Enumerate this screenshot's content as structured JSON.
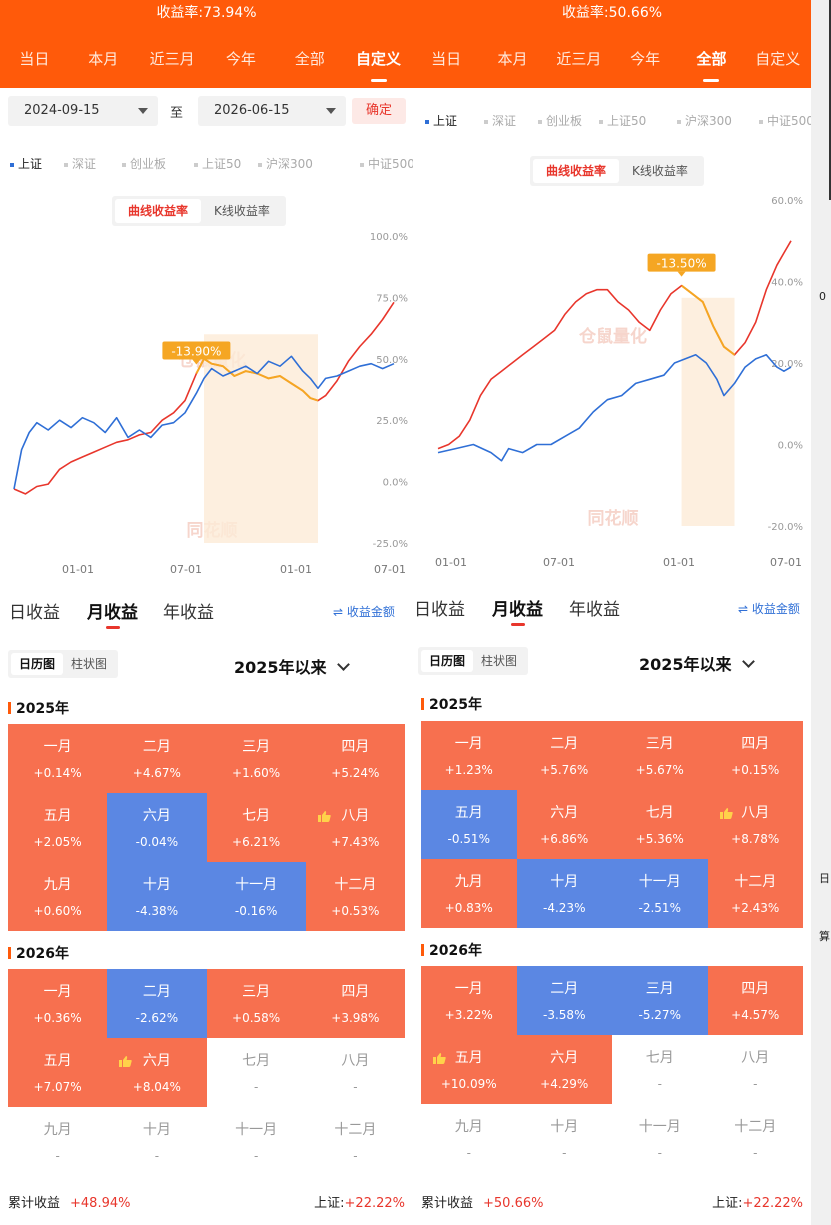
{
  "left": {
    "header": {
      "yield": "收益率:73.94%"
    },
    "tabs": [
      {
        "label": "当日",
        "active": false
      },
      {
        "label": "本月",
        "active": false
      },
      {
        "label": "近三月",
        "active": false
      },
      {
        "label": "今年",
        "active": false
      },
      {
        "label": "全部",
        "active": false
      },
      {
        "label": "自定义",
        "active": true
      }
    ],
    "date_range": {
      "start": "2024-09-15",
      "separator": "至",
      "end": "2026-06-15",
      "confirm": "确定"
    },
    "legend": [
      "上证",
      "深证",
      "创业板",
      "上证50",
      "沪深300",
      "中证500"
    ],
    "chart_toggle": [
      "曲线收益率",
      "K线收益率"
    ],
    "chart_data": {
      "type": "line",
      "y_ticks": [
        "100.0%",
        "75.0%",
        "50.0%",
        "25.0%",
        "0.0%",
        "-25.0%"
      ],
      "x_ticks": [
        "01-01",
        "07-01",
        "01-01",
        "07-01"
      ],
      "ylim": [
        -25,
        100
      ],
      "drawdown_label": "-13.90%",
      "watermarks": [
        "仓鼠量化",
        "同花顺"
      ],
      "series": [
        {
          "name": "",
          "color": "#e8362c",
          "points": [
            [
              0,
              -3
            ],
            [
              3,
              -5
            ],
            [
              6,
              -2
            ],
            [
              9,
              -1
            ],
            [
              12,
              5
            ],
            [
              15,
              8
            ],
            [
              18,
              10
            ],
            [
              21,
              12
            ],
            [
              24,
              14
            ],
            [
              27,
              16
            ],
            [
              30,
              17
            ],
            [
              33,
              19
            ],
            [
              36,
              20
            ],
            [
              39,
              25
            ],
            [
              42,
              28
            ],
            [
              45,
              33
            ],
            [
              48,
              44
            ],
            [
              50,
              50
            ],
            [
              52,
              48
            ],
            [
              55,
              47
            ],
            [
              58,
              43
            ],
            [
              61,
              45
            ],
            [
              64,
              44
            ],
            [
              67,
              42
            ],
            [
              70,
              43
            ],
            [
              73,
              40
            ],
            [
              76,
              37
            ],
            [
              78,
              34
            ],
            [
              80,
              33
            ],
            [
              82,
              35
            ],
            [
              85,
              41
            ],
            [
              88,
              49
            ],
            [
              91,
              55
            ],
            [
              94,
              60
            ],
            [
              97,
              66
            ],
            [
              100,
              73
            ]
          ]
        },
        {
          "name": "",
          "color": "#f5a623",
          "drawdown": true,
          "points": [
            [
              48,
              44
            ],
            [
              50,
              50
            ],
            [
              52,
              48
            ],
            [
              55,
              47
            ],
            [
              58,
              43
            ],
            [
              61,
              45
            ],
            [
              64,
              44
            ],
            [
              67,
              42
            ],
            [
              70,
              43
            ],
            [
              73,
              40
            ],
            [
              76,
              37
            ],
            [
              78,
              34
            ],
            [
              80,
              33
            ]
          ]
        },
        {
          "name": "上证",
          "color": "#2f6fd6",
          "points": [
            [
              0,
              -3
            ],
            [
              2,
              13
            ],
            [
              4,
              20
            ],
            [
              6,
              24
            ],
            [
              9,
              21
            ],
            [
              12,
              25
            ],
            [
              15,
              22
            ],
            [
              18,
              26
            ],
            [
              21,
              24
            ],
            [
              24,
              20
            ],
            [
              27,
              26
            ],
            [
              30,
              18
            ],
            [
              33,
              21
            ],
            [
              36,
              18
            ],
            [
              39,
              23
            ],
            [
              42,
              24
            ],
            [
              45,
              28
            ],
            [
              48,
              36
            ],
            [
              50,
              42
            ],
            [
              52,
              46
            ],
            [
              55,
              43
            ],
            [
              58,
              45
            ],
            [
              61,
              47
            ],
            [
              64,
              44
            ],
            [
              67,
              49
            ],
            [
              70,
              47
            ],
            [
              73,
              51
            ],
            [
              76,
              45
            ],
            [
              78,
              42
            ],
            [
              80,
              38
            ],
            [
              82,
              42
            ],
            [
              85,
              43
            ],
            [
              88,
              45
            ],
            [
              91,
              47
            ],
            [
              94,
              48
            ],
            [
              97,
              46
            ],
            [
              100,
              48
            ]
          ]
        }
      ],
      "shade_x": [
        50,
        80
      ]
    },
    "returns_tabs": [
      {
        "label": "日收益",
        "on": false
      },
      {
        "label": "月收益",
        "on": true
      },
      {
        "label": "年收益",
        "on": false
      }
    ],
    "amount_toggle": "⇌ 收益金额",
    "view_toggle": [
      "日历图",
      "柱状图"
    ],
    "since": "2025年以来",
    "years": [
      {
        "year": "2025年",
        "months": [
          {
            "m": "一月",
            "v": "+0.14%",
            "s": "pos"
          },
          {
            "m": "二月",
            "v": "+4.67%",
            "s": "pos"
          },
          {
            "m": "三月",
            "v": "+1.60%",
            "s": "pos"
          },
          {
            "m": "四月",
            "v": "+5.24%",
            "s": "pos"
          },
          {
            "m": "五月",
            "v": "+2.05%",
            "s": "pos"
          },
          {
            "m": "六月",
            "v": "-0.04%",
            "s": "neg"
          },
          {
            "m": "七月",
            "v": "+6.21%",
            "s": "pos"
          },
          {
            "m": "八月",
            "v": "+7.43%",
            "s": "pos",
            "best": true
          },
          {
            "m": "九月",
            "v": "+0.60%",
            "s": "pos"
          },
          {
            "m": "十月",
            "v": "-4.38%",
            "s": "neg"
          },
          {
            "m": "十一月",
            "v": "-0.16%",
            "s": "neg"
          },
          {
            "m": "十二月",
            "v": "+0.53%",
            "s": "pos"
          }
        ]
      },
      {
        "year": "2026年",
        "months": [
          {
            "m": "一月",
            "v": "+0.36%",
            "s": "pos"
          },
          {
            "m": "二月",
            "v": "-2.62%",
            "s": "neg"
          },
          {
            "m": "三月",
            "v": "+0.58%",
            "s": "pos"
          },
          {
            "m": "四月",
            "v": "+3.98%",
            "s": "pos"
          },
          {
            "m": "五月",
            "v": "+7.07%",
            "s": "pos"
          },
          {
            "m": "六月",
            "v": "+8.04%",
            "s": "pos",
            "best": true
          },
          {
            "m": "七月",
            "v": "-",
            "s": "none"
          },
          {
            "m": "八月",
            "v": "-",
            "s": "none"
          },
          {
            "m": "九月",
            "v": "-",
            "s": "none"
          },
          {
            "m": "十月",
            "v": "-",
            "s": "none"
          },
          {
            "m": "十一月",
            "v": "-",
            "s": "none"
          },
          {
            "m": "十二月",
            "v": "-",
            "s": "none"
          }
        ]
      }
    ],
    "footer": {
      "cum_label": "累计收益",
      "cum_value": "+48.94%",
      "idx_label": "上证:",
      "idx_value": "+22.22%"
    }
  },
  "right": {
    "header": {
      "yield": "收益率:50.66%"
    },
    "tabs": [
      {
        "label": "当日",
        "active": false
      },
      {
        "label": "本月",
        "active": false
      },
      {
        "label": "近三月",
        "active": false
      },
      {
        "label": "今年",
        "active": false
      },
      {
        "label": "全部",
        "active": true
      },
      {
        "label": "自定义",
        "active": false
      }
    ],
    "legend": [
      "上证",
      "深证",
      "创业板",
      "上证50",
      "沪深300",
      "中证500"
    ],
    "chart_toggle": [
      "曲线收益率",
      "K线收益率"
    ],
    "chart_data": {
      "type": "line",
      "y_ticks": [
        "60.0%",
        "40.0%",
        "20.0%",
        "0.0%",
        "-20.0%"
      ],
      "x_ticks": [
        "01-01",
        "07-01",
        "01-01",
        "07-01"
      ],
      "ylim": [
        -20,
        60
      ],
      "drawdown_label": "-13.50%",
      "watermarks": [
        "仓鼠量化",
        "同花顺"
      ],
      "series": [
        {
          "name": "",
          "color": "#e8362c",
          "points": [
            [
              0,
              -1
            ],
            [
              3,
              0
            ],
            [
              6,
              2
            ],
            [
              9,
              6
            ],
            [
              12,
              12
            ],
            [
              15,
              16
            ],
            [
              18,
              18
            ],
            [
              21,
              20
            ],
            [
              24,
              22
            ],
            [
              27,
              24
            ],
            [
              30,
              26
            ],
            [
              33,
              28
            ],
            [
              36,
              32
            ],
            [
              39,
              35
            ],
            [
              42,
              37
            ],
            [
              45,
              38
            ],
            [
              48,
              38
            ],
            [
              51,
              35
            ],
            [
              54,
              33
            ],
            [
              57,
              30
            ],
            [
              60,
              28
            ],
            [
              63,
              33
            ],
            [
              66,
              37
            ],
            [
              69,
              39
            ],
            [
              72,
              37
            ],
            [
              75,
              35
            ],
            [
              78,
              29
            ],
            [
              81,
              24
            ],
            [
              84,
              22
            ],
            [
              87,
              25
            ],
            [
              90,
              30
            ],
            [
              93,
              38
            ],
            [
              96,
              44
            ],
            [
              98,
              47
            ],
            [
              100,
              50
            ]
          ]
        },
        {
          "name": "",
          "color": "#f5a623",
          "drawdown": true,
          "points": [
            [
              69,
              39
            ],
            [
              72,
              37
            ],
            [
              75,
              35
            ],
            [
              78,
              29
            ],
            [
              81,
              24
            ],
            [
              84,
              22
            ]
          ]
        },
        {
          "name": "上证",
          "color": "#2f6fd6",
          "points": [
            [
              0,
              -2
            ],
            [
              5,
              -1
            ],
            [
              10,
              0
            ],
            [
              15,
              -2
            ],
            [
              18,
              -4
            ],
            [
              20,
              -1
            ],
            [
              24,
              -2
            ],
            [
              28,
              0
            ],
            [
              32,
              0
            ],
            [
              36,
              2
            ],
            [
              40,
              4
            ],
            [
              44,
              8
            ],
            [
              48,
              11
            ],
            [
              52,
              12
            ],
            [
              56,
              15
            ],
            [
              60,
              16
            ],
            [
              64,
              17
            ],
            [
              67,
              20
            ],
            [
              70,
              21
            ],
            [
              73,
              22
            ],
            [
              76,
              20
            ],
            [
              79,
              16
            ],
            [
              81,
              12
            ],
            [
              84,
              15
            ],
            [
              87,
              19
            ],
            [
              90,
              21
            ],
            [
              93,
              22
            ],
            [
              96,
              19
            ],
            [
              98,
              18
            ],
            [
              100,
              19
            ]
          ]
        }
      ],
      "shade_x": [
        69,
        84
      ]
    },
    "returns_tabs": [
      {
        "label": "日收益",
        "on": false
      },
      {
        "label": "月收益",
        "on": true
      },
      {
        "label": "年收益",
        "on": false
      }
    ],
    "amount_toggle": "⇌ 收益金额",
    "view_toggle": [
      "日历图",
      "柱状图"
    ],
    "since": "2025年以来",
    "years": [
      {
        "year": "2025年",
        "months": [
          {
            "m": "一月",
            "v": "+1.23%",
            "s": "pos"
          },
          {
            "m": "二月",
            "v": "+5.76%",
            "s": "pos"
          },
          {
            "m": "三月",
            "v": "+5.67%",
            "s": "pos"
          },
          {
            "m": "四月",
            "v": "+0.15%",
            "s": "pos"
          },
          {
            "m": "五月",
            "v": "-0.51%",
            "s": "neg"
          },
          {
            "m": "六月",
            "v": "+6.86%",
            "s": "pos"
          },
          {
            "m": "七月",
            "v": "+5.36%",
            "s": "pos"
          },
          {
            "m": "八月",
            "v": "+8.78%",
            "s": "pos",
            "best": true
          },
          {
            "m": "九月",
            "v": "+0.83%",
            "s": "pos"
          },
          {
            "m": "十月",
            "v": "-4.23%",
            "s": "neg"
          },
          {
            "m": "十一月",
            "v": "-2.51%",
            "s": "neg"
          },
          {
            "m": "十二月",
            "v": "+2.43%",
            "s": "pos"
          }
        ]
      },
      {
        "year": "2026年",
        "months": [
          {
            "m": "一月",
            "v": "+3.22%",
            "s": "pos"
          },
          {
            "m": "二月",
            "v": "-3.58%",
            "s": "neg"
          },
          {
            "m": "三月",
            "v": "-5.27%",
            "s": "neg"
          },
          {
            "m": "四月",
            "v": "+4.57%",
            "s": "pos"
          },
          {
            "m": "五月",
            "v": "+10.09%",
            "s": "pos",
            "best": true
          },
          {
            "m": "六月",
            "v": "+4.29%",
            "s": "pos"
          },
          {
            "m": "七月",
            "v": "-",
            "s": "none"
          },
          {
            "m": "八月",
            "v": "-",
            "s": "none"
          },
          {
            "m": "九月",
            "v": "-",
            "s": "none"
          },
          {
            "m": "十月",
            "v": "-",
            "s": "none"
          },
          {
            "m": "十一月",
            "v": "-",
            "s": "none"
          },
          {
            "m": "十二月",
            "v": "-",
            "s": "none"
          }
        ]
      }
    ],
    "footer": {
      "cum_label": "累计收益",
      "cum_value": "+50.66%",
      "idx_label": "上证:",
      "idx_value": "+22.22%"
    }
  },
  "sidebar_text": [
    "0",
    "日",
    "算"
  ]
}
